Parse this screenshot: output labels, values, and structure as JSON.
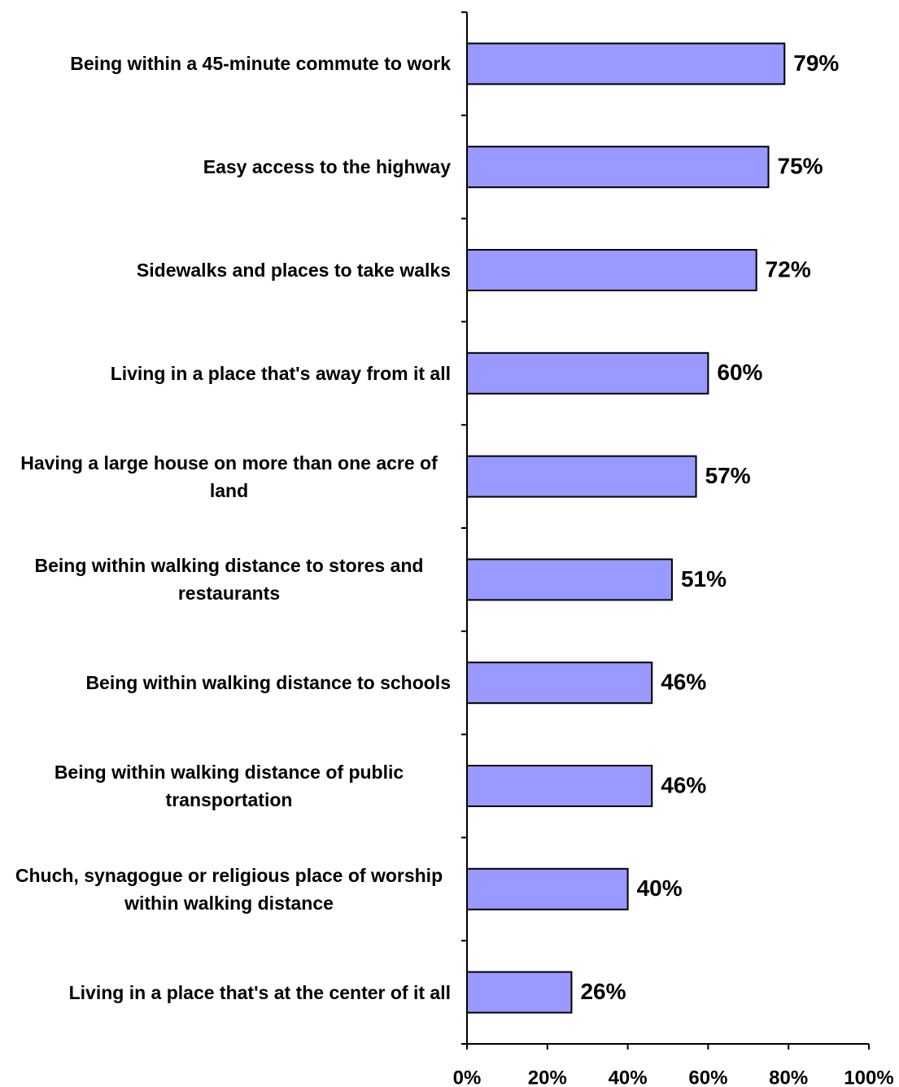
{
  "chart_data": {
    "type": "bar",
    "orientation": "horizontal",
    "categories": [
      "Being within a 45-minute commute to work",
      "Easy access to the highway",
      "Sidewalks and places to take walks",
      "Living in a place that's away from it all",
      "Having a large house on more than one acre of land",
      "Being within walking distance to stores and restaurants",
      "Being within walking distance to schools",
      "Being within walking distance of public transportation",
      "Chuch, synagogue or religious place of worship within walking distance",
      "Living in a place that's at the center of it all"
    ],
    "values": [
      79,
      75,
      72,
      60,
      57,
      51,
      46,
      46,
      40,
      26
    ],
    "value_labels": [
      "79%",
      "75%",
      "72%",
      "60%",
      "57%",
      "51%",
      "46%",
      "46%",
      "40%",
      "26%"
    ],
    "color": "#9999ff",
    "xlim": [
      0,
      100
    ],
    "xticks": [
      {
        "value": 0,
        "label": "0%"
      },
      {
        "value": 20,
        "label": "20%"
      },
      {
        "value": 40,
        "label": "40%"
      },
      {
        "value": 60,
        "label": "60%"
      },
      {
        "value": 80,
        "label": "80%"
      },
      {
        "value": 100,
        "label": "100%"
      }
    ],
    "grid": false
  }
}
